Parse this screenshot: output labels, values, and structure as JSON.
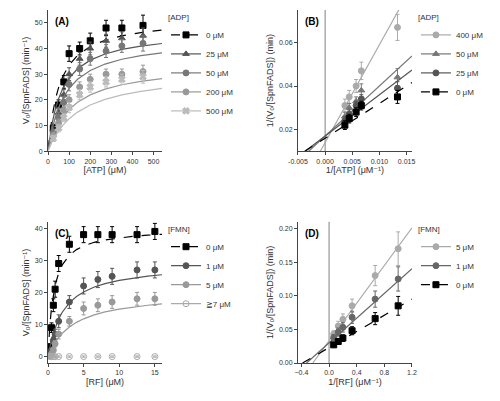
{
  "chart_data": [
    {
      "type": "scatter",
      "title": "(A)",
      "x_label": "[ATP] (μM)",
      "y_label": "V₀/[SpnFADS] (min⁻¹)",
      "xlim": [
        0,
        540
      ],
      "ylim": [
        0,
        55
      ],
      "xticks": [
        0,
        100,
        200,
        300,
        400,
        500
      ],
      "yticks": [
        0,
        10,
        20,
        30,
        40,
        50
      ],
      "grid": false,
      "legend": "right",
      "legend_title": "[ADP]",
      "series": [
        {
          "name": "0 μM",
          "color": "black",
          "marker": "square",
          "line_style": "dashed",
          "x": [
            25,
            50,
            75,
            100,
            150,
            200,
            275,
            350,
            450
          ],
          "values": [
            9,
            18,
            27,
            38,
            40,
            43,
            48,
            48,
            49
          ],
          "errors": [
            1.5,
            2,
            2.5,
            3,
            2.5,
            3,
            3,
            3,
            4
          ],
          "fit_x": [
            1,
            10,
            20,
            35,
            50,
            70,
            100,
            140,
            200,
            270,
            350,
            440,
            540
          ],
          "fit_values": [
            0.929,
            8.0,
            13.867,
            20.222,
            24.762,
            29.12,
            33.548,
            37.333,
            40.784,
            43.2,
            44.938,
            46.222,
            47.193
          ]
        },
        {
          "name": "25 μM",
          "color": "#555555",
          "marker": "triangle",
          "line_style": "solid",
          "x": [
            25,
            50,
            75,
            100,
            150,
            200,
            275,
            350,
            450
          ],
          "values": [
            8,
            15,
            22,
            30,
            36,
            40,
            43,
            44,
            45
          ],
          "errors": [
            1.5,
            2,
            2,
            2.5,
            2.5,
            2.5,
            2.5,
            2.5,
            3
          ],
          "fit_x": [
            1,
            10,
            20,
            35,
            50,
            70,
            100,
            140,
            200,
            270,
            350,
            440,
            540
          ],
          "fit_values": [
            0.712,
            6.267,
            11.059,
            16.45,
            20.435,
            24.37,
            28.485,
            32.098,
            35.472,
            37.881,
            39.639,
            40.95,
            41.95
          ]
        },
        {
          "name": "50 μM",
          "color": "#777777",
          "marker": "circle",
          "line_style": "solid",
          "x": [
            25,
            50,
            75,
            100,
            150,
            200,
            275,
            350,
            450
          ],
          "values": [
            7,
            13,
            19,
            26,
            32,
            36,
            39,
            41,
            42
          ],
          "errors": [
            1.5,
            2,
            2,
            2.5,
            2.5,
            2.5,
            2.5,
            2.5,
            3
          ],
          "fit_x": [
            1,
            10,
            20,
            35,
            50,
            70,
            100,
            140,
            200,
            270,
            350,
            440,
            540
          ],
          "fit_values": [
            0.543,
            4.889,
            8.8,
            13.391,
            16.923,
            20.533,
            24.444,
            28.0,
            31.429,
            33.943,
            35.814,
            37.231,
            38.323
          ]
        },
        {
          "name": "200 μM",
          "color": "#999999",
          "marker": "circle",
          "line_style": "solid",
          "x": [
            25,
            50,
            75,
            100,
            150,
            200,
            275,
            350,
            450
          ],
          "values": [
            6,
            11,
            16,
            20,
            25,
            28,
            30,
            30,
            31
          ],
          "errors": [
            1.2,
            1.5,
            1.5,
            2,
            2,
            2,
            2,
            2,
            2.5
          ],
          "fit_x": [
            1,
            10,
            20,
            35,
            50,
            70,
            100,
            140,
            200,
            270,
            350,
            440,
            540
          ],
          "fit_values": [
            0.306,
            2.833,
            5.231,
            8.207,
            10.625,
            13.222,
            16.19,
            19.04,
            21.935,
            24.158,
            25.87,
            27.2,
            28.246
          ]
        },
        {
          "name": "500 μM",
          "color": "#bbbbbb",
          "marker": "x",
          "line_style": "solid",
          "x": [
            25,
            50,
            75,
            100,
            150,
            200,
            275,
            350,
            450
          ],
          "values": [
            5,
            9,
            13,
            17,
            22,
            25,
            27,
            28,
            29
          ],
          "errors": [
            1.2,
            1.5,
            1.5,
            2,
            2,
            2,
            2,
            2,
            2.5
          ],
          "fit_x": [
            1,
            10,
            20,
            35,
            50,
            70,
            100,
            140,
            200,
            270,
            350,
            440,
            540
          ],
          "fit_values": [
            0.212,
            2.0,
            3.758,
            6.028,
            7.949,
            10.093,
            12.653,
            15.228,
            17.971,
            20.169,
            21.919,
            23.316,
            24.438
          ]
        }
      ]
    },
    {
      "type": "scatter",
      "title": "(B)",
      "x_label": "1/[ATP] (μM⁻¹)",
      "y_label": "1/(V₀/[SpnFADS]) (min)",
      "xlim": [
        -0.005,
        0.016
      ],
      "ylim": [
        0.01,
        0.075
      ],
      "xticks": [
        {
          "value": -0.005,
          "label": "-0.005"
        },
        {
          "value": 0,
          "label": "0.000"
        },
        {
          "value": 0.005,
          "label": "0.005"
        },
        {
          "value": 0.01,
          "label": "0.010"
        },
        {
          "value": 0.015,
          "label": "0.015"
        }
      ],
      "yticks": [
        0.02,
        0.04,
        0.06
      ],
      "grid": false,
      "legend": "right",
      "legend_title": "[ADP]",
      "vline_x": 0,
      "series": [
        {
          "name": "400 μM",
          "color": "#aaaaaa",
          "marker": "circle",
          "line_style": "solid",
          "x": [
            0.00364,
            0.00444,
            0.00571,
            0.00667,
            0.01333
          ],
          "values": [
            0.031,
            0.035,
            0.04,
            0.047,
            0.067
          ],
          "errors": [
            0.003,
            0.003,
            0.003,
            0.004,
            0.006
          ],
          "fit_x": [
            -0.000889,
            0.013556
          ],
          "fit_values": [
            0.01,
            0.075
          ]
        },
        {
          "name": "50 μM",
          "color": "#777777",
          "marker": "triangle",
          "line_style": "solid",
          "x": [
            0.00364,
            0.00444,
            0.00571,
            0.00667,
            0.01333
          ],
          "values": [
            0.026,
            0.03,
            0.033,
            0.038,
            0.044
          ],
          "errors": [
            0.002,
            0.002,
            0.002,
            0.003,
            0.004
          ],
          "fit_x": [
            -0.003043,
            0.016
          ],
          "fit_values": [
            0.01,
            0.0538
          ]
        },
        {
          "name": "25 μM",
          "color": "#555555",
          "marker": "circle",
          "line_style": "solid",
          "x": [
            0.00364,
            0.00444,
            0.00571,
            0.00667,
            0.01333
          ],
          "values": [
            0.024,
            0.027,
            0.031,
            0.034,
            0.039
          ],
          "errors": [
            0.002,
            0.002,
            0.002,
            0.002,
            0.003
          ],
          "fit_x": [
            -0.003684,
            0.016
          ],
          "fit_values": [
            0.01,
            0.0474
          ]
        },
        {
          "name": "0 μM",
          "color": "black",
          "marker": "square",
          "line_style": "dashed",
          "x": [
            0.00364,
            0.00444,
            0.00571,
            0.00667,
            0.01333
          ],
          "values": [
            0.022,
            0.025,
            0.028,
            0.031,
            0.035
          ],
          "errors": [
            0.002,
            0.002,
            0.002,
            0.002,
            0.003
          ],
          "fit_x": [
            -0.00375,
            0.016
          ],
          "fit_values": [
            0.01,
            0.0416
          ]
        }
      ]
    },
    {
      "type": "scatter",
      "title": "(C)",
      "x_label": "[RF] (μM)",
      "y_label": "V₀/[SpnFADS] (min⁻¹)",
      "xlim": [
        0,
        16
      ],
      "ylim": [
        -2,
        42
      ],
      "xticks": [
        0,
        5,
        10,
        15
      ],
      "yticks": [
        0,
        10,
        20,
        30,
        40
      ],
      "grid": false,
      "legend": "right",
      "legend_title": "[FMN]",
      "series": [
        {
          "name": "0 μM",
          "color": "black",
          "marker": "square",
          "line_style": "dashed",
          "x": [
            0.25,
            0.5,
            0.75,
            1.0,
            1.5,
            3.0,
            5.0,
            7.0,
            9.0,
            12.5,
            15.0
          ],
          "values": [
            3,
            9,
            16,
            21,
            29,
            35,
            38,
            38,
            38,
            38,
            39
          ],
          "errors": [
            1,
            1.5,
            2,
            2.5,
            2.5,
            2.5,
            2.5,
            2.5,
            2.5,
            2.5,
            2.5
          ],
          "fit_x": [
            0.01,
            0.1,
            0.25,
            0.5,
            0.75,
            1,
            1.5,
            2,
            3,
            4,
            5,
            6.5,
            8,
            10,
            12,
            14,
            16
          ],
          "fit_values": [
            0.494,
            4.444,
            9.524,
            15.385,
            19.355,
            22.222,
            26.087,
            28.571,
            31.579,
            33.333,
            34.483,
            35.616,
            36.364,
            37.037,
            37.5,
            37.838,
            38.095
          ]
        },
        {
          "name": "1 μM",
          "color": "#555555",
          "marker": "circle",
          "line_style": "solid",
          "x": [
            0.25,
            0.5,
            0.75,
            1.0,
            1.5,
            3.0,
            5.0,
            7.0,
            9.0,
            12.5,
            15.0
          ],
          "values": [
            0.5,
            2,
            5,
            7,
            11,
            17,
            22,
            24,
            25,
            27,
            27
          ],
          "errors": [
            0.5,
            0.8,
            1,
            1.5,
            2,
            2,
            2.5,
            2.5,
            2.5,
            2.5,
            2.5
          ],
          "fit_x": [
            0.01,
            0.1,
            0.25,
            0.5,
            0.75,
            1,
            1.5,
            2,
            3,
            4,
            5,
            6.5,
            8,
            10,
            12,
            14,
            16
          ],
          "fit_values": [
            0.131,
            1.261,
            2.959,
            5.37,
            7.373,
            9.063,
            11.757,
            13.81,
            16.731,
            18.71,
            20.139,
            21.667,
            22.745,
            23.77,
            24.507,
            25.062,
            25.495
          ]
        },
        {
          "name": "5 μM",
          "color": "#999999",
          "marker": "circle",
          "line_style": "solid",
          "x": [
            0.25,
            0.5,
            0.75,
            1.0,
            1.5,
            3.0,
            5.0,
            7.0,
            9.0,
            12.5,
            15.0
          ],
          "values": [
            0.2,
            0.8,
            2,
            4,
            7,
            11,
            15,
            16,
            17,
            18,
            18
          ],
          "errors": [
            0.3,
            0.5,
            0.8,
            1,
            1.5,
            1.5,
            2,
            2,
            2,
            2,
            2
          ],
          "fit_x": [
            0.01,
            0.1,
            0.25,
            0.5,
            0.75,
            1,
            1.5,
            2,
            3,
            4,
            5,
            6.5,
            8,
            10,
            12,
            14,
            16
          ],
          "fit_values": [
            0.057,
            0.556,
            1.333,
            2.5,
            3.529,
            4.444,
            6.0,
            7.273,
            9.231,
            10.667,
            11.765,
            13.0,
            13.913,
            14.815,
            15.484,
            16.0,
            16.41
          ]
        },
        {
          "name": "≧7 μM",
          "color": "#aaaaaa",
          "marker": "open circle",
          "line_style": "solid",
          "x": [
            0.25,
            0.5,
            0.75,
            1.0,
            1.5,
            3.0,
            5.0,
            7.0,
            9.0,
            12.5,
            15.0
          ],
          "values": [
            0,
            0,
            0,
            0,
            0,
            0,
            0,
            0,
            0,
            0,
            0
          ],
          "errors": [
            0.2,
            0.2,
            0.2,
            0.2,
            0.2,
            0.2,
            0.2,
            0.2,
            0.2,
            0.2,
            0.2
          ]
        }
      ]
    },
    {
      "type": "scatter",
      "title": "(D)",
      "x_label": "1/[RF] (μM⁻¹)",
      "y_label": "1/(V₀/[SpnFADS]) (min)",
      "xlim": [
        -0.45,
        1.2
      ],
      "ylim": [
        0,
        0.21
      ],
      "xticks": [
        {
          "value": -0.4,
          "label": "−0.4"
        },
        {
          "value": 0,
          "label": "0.0"
        },
        0.4,
        0.8,
        1.2
      ],
      "yticks": [
        {
          "value": 0,
          "label": "0.00"
        },
        0.05,
        {
          "value": 0.1,
          "label": "0.10"
        },
        0.15,
        {
          "value": 0.2,
          "label": "0.20"
        }
      ],
      "grid": false,
      "legend": "right",
      "legend_title": "[FMN]",
      "vline_x": 0,
      "series": [
        {
          "name": "5 μM",
          "color": "#aaaaaa",
          "marker": "circle",
          "line_style": "solid",
          "x": [
            0.067,
            0.133,
            0.2,
            0.333,
            0.667,
            1.0
          ],
          "values": [
            0.043,
            0.055,
            0.065,
            0.085,
            0.13,
            0.17
          ],
          "errors": [
            0.005,
            0.007,
            0.008,
            0.01,
            0.015,
            0.025
          ],
          "fit_x": [
            -0.235714,
            1.2
          ],
          "fit_values": [
            0,
            0.201
          ]
        },
        {
          "name": "1 μM",
          "color": "#666666",
          "marker": "circle",
          "line_style": "solid",
          "x": [
            0.067,
            0.133,
            0.2,
            0.333,
            0.667,
            1.0
          ],
          "values": [
            0.038,
            0.046,
            0.053,
            0.068,
            0.095,
            0.125
          ],
          "errors": [
            0.004,
            0.006,
            0.007,
            0.009,
            0.012,
            0.018
          ],
          "fit_x": [
            -0.326087,
            1.2
          ],
          "fit_values": [
            0,
            0.1404
          ]
        },
        {
          "name": "0 μM",
          "color": "black",
          "marker": "square",
          "line_style": "dashed",
          "x": [
            0.067,
            0.133,
            0.2,
            0.333,
            0.667,
            1.0
          ],
          "values": [
            0.027,
            0.032,
            0.037,
            0.048,
            0.066,
            0.085
          ],
          "errors": [
            0.003,
            0.004,
            0.005,
            0.006,
            0.009,
            0.014
          ],
          "fit_x": [
            -0.383333,
            1.2
          ],
          "fit_values": [
            0,
            0.095
          ]
        }
      ]
    }
  ]
}
